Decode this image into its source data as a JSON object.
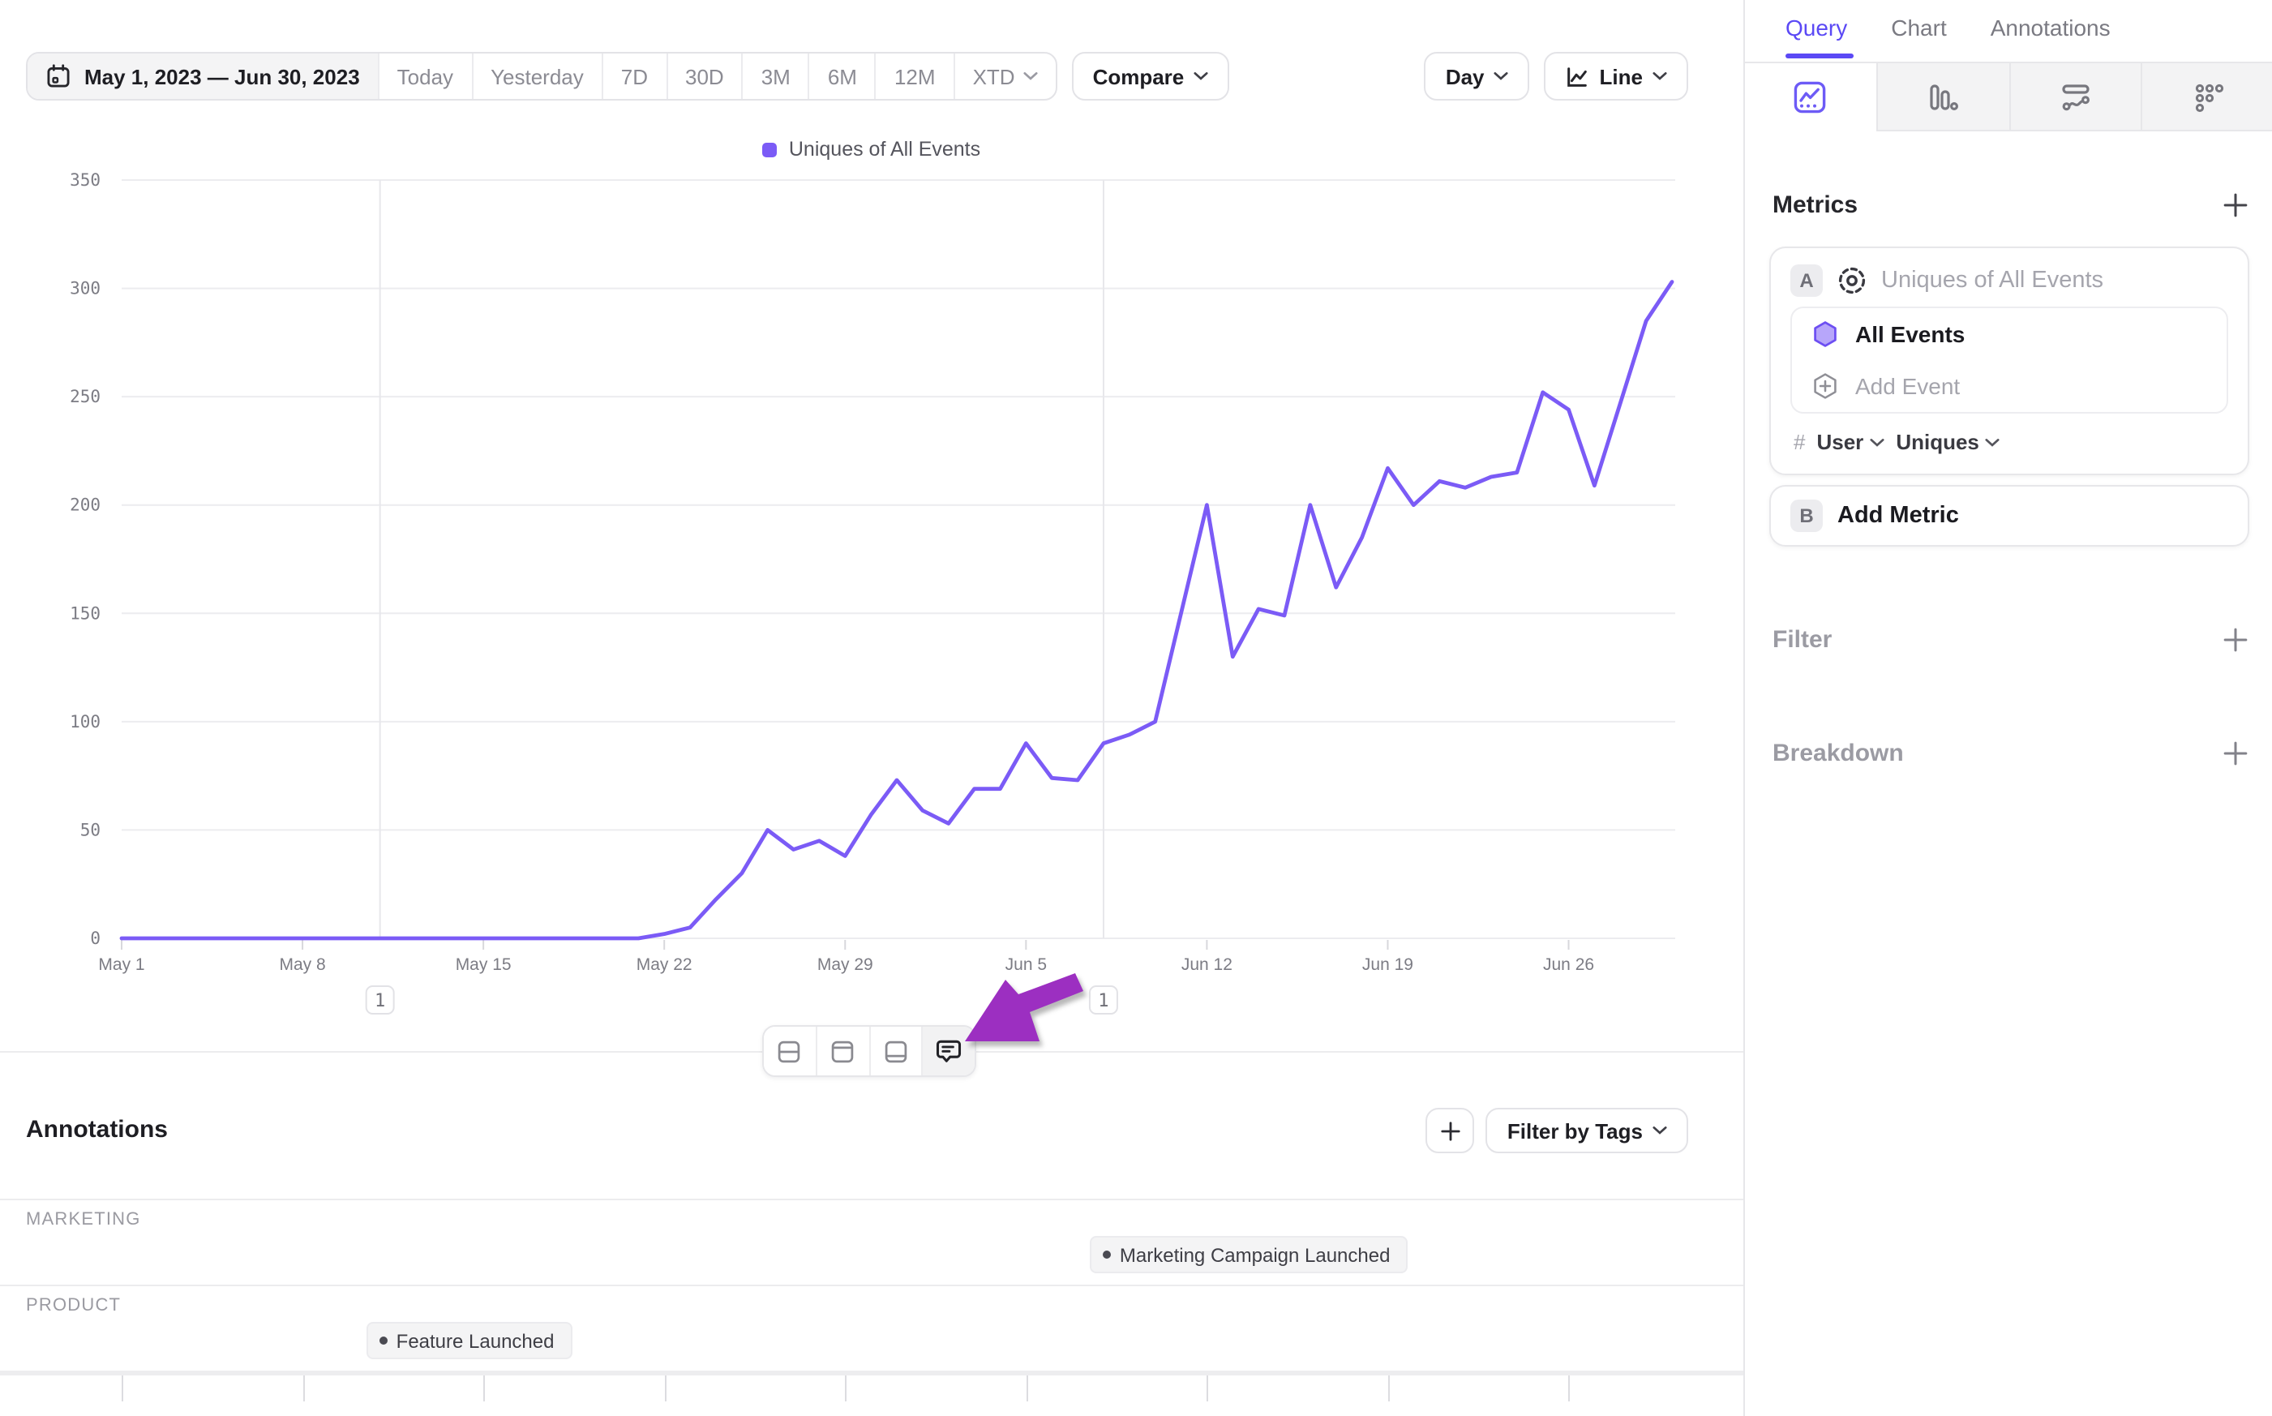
{
  "app": {
    "accent": "#5b49f5",
    "arrow_color": "#9c2fc1"
  },
  "toolbar": {
    "date_range": "May 1, 2023 — Jun 30, 2023",
    "presets": [
      "Today",
      "Yesterday",
      "7D",
      "30D",
      "3M",
      "6M",
      "12M"
    ],
    "xtd": "XTD",
    "compare": "Compare",
    "granularity": "Day",
    "chart_type": "Line"
  },
  "legend": {
    "label": "Uniques of All Events",
    "color": "#7b5bf6"
  },
  "chart_data": {
    "type": "line",
    "series_name": "Uniques of All Events",
    "line_color": "#7b5bf6",
    "x_start": "May 1, 2023",
    "x_end": "Jun 30, 2023",
    "x_tick_labels": [
      "May 1",
      "May 8",
      "May 15",
      "May 22",
      "May 29",
      "Jun 5",
      "Jun 12",
      "Jun 19",
      "Jun 26"
    ],
    "x_tick_day_indices": [
      0,
      7,
      14,
      21,
      28,
      35,
      42,
      49,
      56
    ],
    "y_ticks": [
      0,
      50,
      100,
      150,
      200,
      250,
      300,
      350
    ],
    "ylim": [
      0,
      350
    ],
    "grid": true,
    "legend_position": "top-center",
    "values": [
      0,
      0,
      0,
      0,
      0,
      0,
      0,
      0,
      0,
      0,
      0,
      0,
      0,
      0,
      0,
      0,
      0,
      0,
      0,
      0,
      0,
      2,
      5,
      18,
      30,
      50,
      41,
      45,
      38,
      57,
      73,
      59,
      53,
      69,
      69,
      90,
      74,
      73,
      90,
      94,
      100,
      150,
      200,
      130,
      152,
      149,
      200,
      162,
      185,
      217,
      200,
      211,
      208,
      213,
      215,
      252,
      244,
      209,
      247,
      285,
      303
    ],
    "annotations": [
      {
        "badge": "1",
        "day_index": 10
      },
      {
        "badge": "1",
        "day_index": 38
      }
    ]
  },
  "chart_toolbar": {
    "buttons": [
      "split-rows-layout",
      "panel-top-layout",
      "panel-bottom-layout",
      "comments"
    ],
    "active": "comments"
  },
  "annotations_panel": {
    "title": "Annotations",
    "filter_by_tags": "Filter by Tags",
    "groups": [
      {
        "name": "MARKETING",
        "items": [
          {
            "label": "Marketing Campaign Launched",
            "day_index": 38
          }
        ]
      },
      {
        "name": "PRODUCT",
        "items": [
          {
            "label": "Feature Launched",
            "day_index": 10
          }
        ]
      }
    ]
  },
  "sidebar": {
    "tabs": [
      {
        "label": "Query",
        "active": true
      },
      {
        "label": "Chart",
        "active": false
      },
      {
        "label": "Annotations",
        "active": false
      }
    ],
    "chart_type_tabs": [
      "line-chart",
      "bar-chart",
      "flow-chart",
      "data-grid"
    ],
    "metrics": {
      "title": "Metrics",
      "slots": [
        {
          "badge": "A",
          "name": "Uniques of All Events",
          "event_label": "All Events",
          "add_event": "Add Event",
          "measure_prefix": "#",
          "measure_entity": "User",
          "measure_type": "Uniques"
        },
        {
          "badge": "B",
          "label": "Add Metric"
        }
      ]
    },
    "filter": {
      "title": "Filter"
    },
    "breakdown": {
      "title": "Breakdown"
    }
  }
}
